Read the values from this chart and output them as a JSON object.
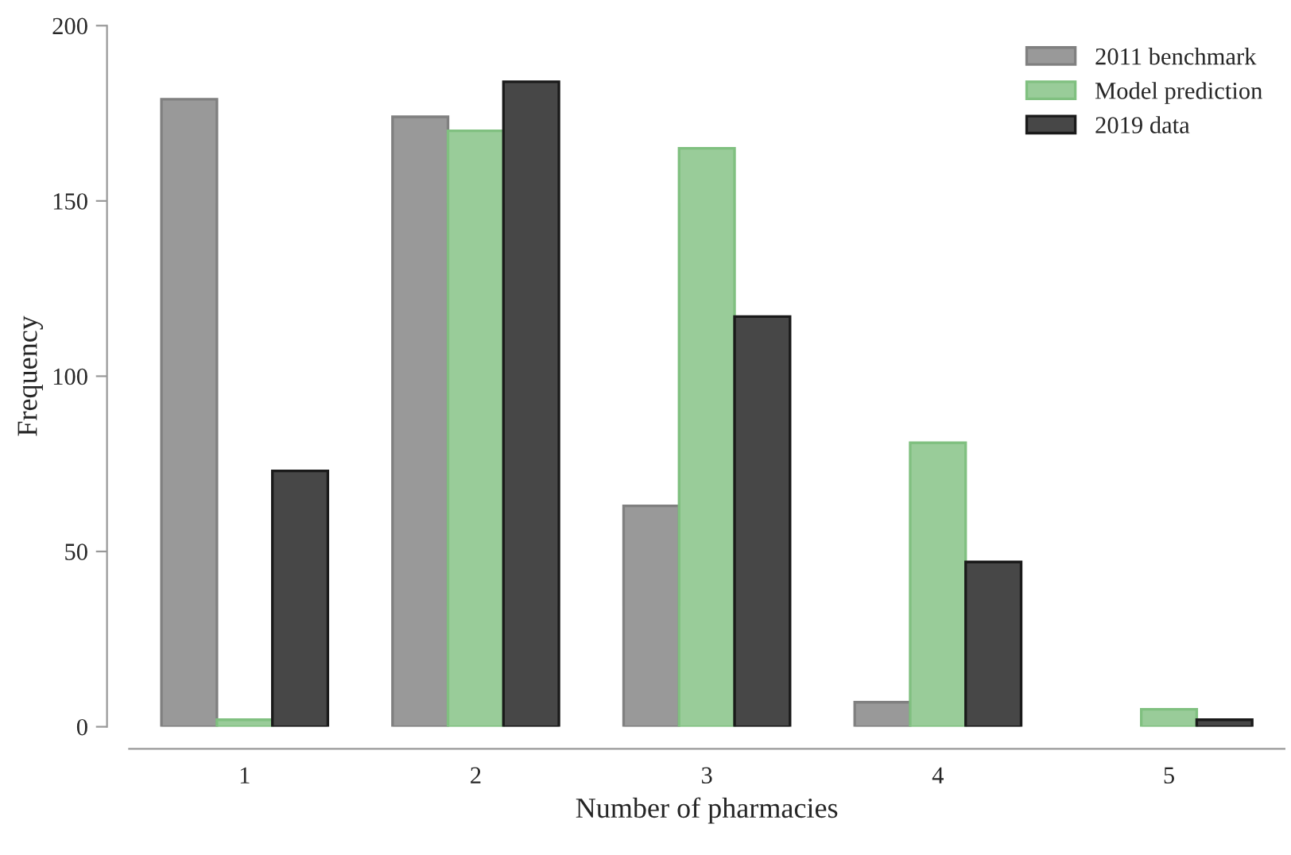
{
  "chart_data": {
    "type": "bar",
    "xlabel": "Number of pharmacies",
    "ylabel": "Frequency",
    "categories": [
      "1",
      "2",
      "3",
      "4",
      "5"
    ],
    "series": [
      {
        "name": "2011 benchmark",
        "color": "#999999",
        "values": [
          179,
          174,
          63,
          7,
          null
        ]
      },
      {
        "name": "Model prediction",
        "color": "#99cc99",
        "values": [
          2,
          170,
          165,
          81,
          5
        ]
      },
      {
        "name": "2019 data",
        "color": "#474747",
        "values": [
          73,
          184,
          117,
          47,
          2
        ]
      }
    ],
    "ylim": [
      0,
      200
    ],
    "yticks": [
      0,
      50,
      100,
      150,
      200
    ],
    "grid": false,
    "legend": "top right"
  }
}
